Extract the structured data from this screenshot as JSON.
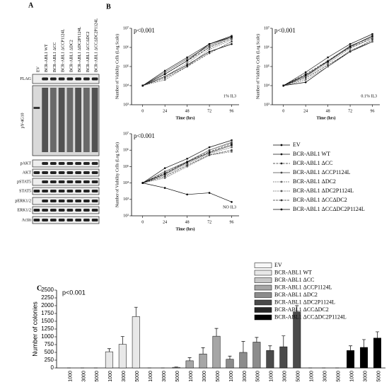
{
  "panel_a": {
    "label": "A",
    "lanes": [
      "EV",
      "BCR-ABL1 WT",
      "BCR-ABL1 ΔCC",
      "BCR-ABL1 ΔCCP1124L",
      "BCR-ABL1 ΔDC2",
      "BCR-ABL1 ΔDC2P1124L",
      "BCR-ABL1 ΔCCΔDC2",
      "BCR-ABL1 ΔCCΔDC2P1124L"
    ],
    "rows": [
      "FLAG",
      "pY-4G10",
      "pAKT",
      "AKT",
      "pSTAT5",
      "STAT5",
      "pERK1/2",
      "ERK1/2",
      "Actin"
    ]
  },
  "panel_b_label": "B",
  "panel_c_label": "C",
  "chart_data": [
    {
      "type": "line",
      "annotation": "p<0.001",
      "condition": "1% IL3",
      "x_label": "Time (hrs)",
      "y_label": "Number of Viability Cells (Log Scale)",
      "x": [
        0,
        24,
        48,
        72,
        96
      ],
      "xlim": [
        -12,
        104
      ],
      "xticks": [
        0,
        24,
        48,
        72,
        96
      ],
      "ylim": [
        1000,
        10000000
      ],
      "log_y": true,
      "yticks": [
        {
          "value": 1000,
          "label": "10³"
        },
        {
          "value": 10000,
          "label": "10⁴"
        },
        {
          "value": 100000,
          "label": "10⁵"
        },
        {
          "value": 1000000,
          "label": "10⁶"
        },
        {
          "value": 10000000,
          "label": "10⁷"
        }
      ],
      "series": [
        {
          "name": "EV",
          "color": "#000000",
          "values": [
            10000,
            30000,
            120000,
            600000,
            1500000
          ]
        },
        {
          "name": "BCR-ABL1 WT",
          "color": "#111111",
          "values": [
            10000,
            60000,
            300000,
            1500000,
            4000000
          ]
        },
        {
          "name": "BCR-ABL1 ΔCC",
          "color": "#222222",
          "values": [
            10000,
            40000,
            200000,
            1000000,
            3000000
          ]
        },
        {
          "name": "BCR-ABL1 ΔCCP1124L",
          "color": "#444444",
          "values": [
            10000,
            50000,
            250000,
            1200000,
            3500000
          ]
        },
        {
          "name": "BCR-ABL1 ΔDC2",
          "color": "#666666",
          "values": [
            10000,
            20000,
            100000,
            800000,
            2500000
          ]
        },
        {
          "name": "BCR-ABL1 ΔDC2P1124L",
          "color": "#555555",
          "values": [
            10000,
            30000,
            150000,
            1000000,
            3000000
          ]
        },
        {
          "name": "BCR-ABL1 ΔCCΔDC2",
          "color": "#333333",
          "values": [
            10000,
            25000,
            100000,
            500000,
            2000000
          ]
        },
        {
          "name": "BCR-ABL1 ΔCCΔDC2P1124L",
          "color": "#000000",
          "values": [
            10000,
            40000,
            200000,
            1500000,
            3500000
          ]
        }
      ]
    },
    {
      "type": "line",
      "annotation": "p<0.001",
      "condition": "0.1% IL3",
      "x_label": "Time (hrs)",
      "y_label": "Number of Viability Cells (Log Scale)",
      "x": [
        0,
        24,
        48,
        72,
        96
      ],
      "xlim": [
        -12,
        104
      ],
      "xticks": [
        0,
        24,
        48,
        72,
        96
      ],
      "ylim": [
        1000,
        10000000
      ],
      "log_y": true,
      "yticks": [
        {
          "value": 1000,
          "label": "10³"
        },
        {
          "value": 10000,
          "label": "10⁴"
        },
        {
          "value": 100000,
          "label": "10⁵"
        },
        {
          "value": 1000000,
          "label": "10⁶"
        },
        {
          "value": 10000000,
          "label": "10⁷"
        }
      ],
      "series": [
        {
          "color": "#000000",
          "values": [
            10000,
            15000,
            100000,
            600000,
            2000000
          ]
        },
        {
          "color": "#111111",
          "values": [
            10000,
            50000,
            300000,
            1500000,
            5000000
          ]
        },
        {
          "color": "#222222",
          "values": [
            10000,
            40000,
            200000,
            1000000,
            3000000
          ]
        },
        {
          "color": "#444444",
          "values": [
            10000,
            30000,
            200000,
            1200000,
            3500000
          ]
        },
        {
          "color": "#666666",
          "values": [
            10000,
            20000,
            100000,
            700000,
            2000000
          ]
        },
        {
          "color": "#555555",
          "values": [
            10000,
            30000,
            150000,
            900000,
            3000000
          ]
        },
        {
          "color": "#333333",
          "values": [
            10000,
            25000,
            120000,
            600000,
            2500000
          ]
        },
        {
          "color": "#000000",
          "values": [
            10000,
            35000,
            180000,
            1100000,
            4000000
          ]
        }
      ]
    },
    {
      "type": "line",
      "annotation": "p<0.001",
      "condition": "NO IL3",
      "x_label": "Time (hrs)",
      "y_label": "Number of Viability Cells (Log Scale)",
      "x": [
        0,
        24,
        48,
        72,
        96
      ],
      "xlim": [
        -12,
        104
      ],
      "xticks": [
        0,
        24,
        48,
        72,
        96
      ],
      "ylim": [
        100,
        10000000
      ],
      "log_y": true,
      "yticks": [
        {
          "value": 100,
          "label": "10²"
        },
        {
          "value": 1000,
          "label": "10³"
        },
        {
          "value": 10000,
          "label": "10⁴"
        },
        {
          "value": 100000,
          "label": "10⁵"
        },
        {
          "value": 1000000,
          "label": "10⁶"
        },
        {
          "value": 10000000,
          "label": "10⁷"
        }
      ],
      "series": [
        {
          "color": "#000000",
          "values": [
            10000,
            5000,
            2000,
            2500,
            700
          ]
        },
        {
          "color": "#111111",
          "values": [
            10000,
            80000,
            300000,
            1500000,
            4000000
          ]
        },
        {
          "color": "#222222",
          "values": [
            10000,
            40000,
            200000,
            800000,
            2500000
          ]
        },
        {
          "color": "#444444",
          "values": [
            10000,
            50000,
            200000,
            1000000,
            3000000
          ]
        },
        {
          "color": "#666666",
          "values": [
            10000,
            20000,
            100000,
            500000,
            800000
          ]
        },
        {
          "color": "#555555",
          "values": [
            10000,
            30000,
            150000,
            600000,
            1500000
          ]
        },
        {
          "color": "#333333",
          "values": [
            10000,
            25000,
            120000,
            500000,
            1000000
          ]
        },
        {
          "color": "#000000",
          "values": [
            10000,
            35000,
            180000,
            700000,
            2000000
          ]
        }
      ]
    },
    {
      "type": "bar",
      "annotation": "p<0.001",
      "y_label": "Number of colonies",
      "categories": [
        "1000",
        "3000",
        "5000"
      ],
      "ylim": [
        0,
        2500
      ],
      "yticks": [
        0,
        250,
        500,
        750,
        1000,
        1250,
        1500,
        1750,
        2000,
        2250,
        2500
      ],
      "series": [
        {
          "name": "EV",
          "color": "#f7f7f7",
          "values": [
            0,
            0,
            0
          ],
          "errors": [
            0,
            0,
            0
          ]
        },
        {
          "name": "BCR-ABL1 WT",
          "color": "#e8e8e8",
          "values": [
            520,
            760,
            1650
          ],
          "errors": [
            100,
            250,
            300
          ]
        },
        {
          "name": "BCR-ABL1 ΔCC",
          "color": "#c8c8c8",
          "values": [
            0,
            0,
            20
          ],
          "errors": [
            0,
            0,
            10
          ]
        },
        {
          "name": "BCR-ABL1 ΔCCP1124L",
          "color": "#a6a6a6",
          "values": [
            230,
            450,
            1020
          ],
          "errors": [
            100,
            200,
            250
          ]
        },
        {
          "name": "BCR-ABL1 ΔDC2",
          "color": "#8c8c8c",
          "values": [
            280,
            500,
            830
          ],
          "errors": [
            100,
            350,
            150
          ]
        },
        {
          "name": "BCR-ABL1 ΔDC2P1124L",
          "color": "#4a4a4a",
          "values": [
            560,
            680,
            1800
          ],
          "errors": [
            150,
            350,
            200
          ]
        },
        {
          "name": "BCR-ABL1 ΔCCΔDC2",
          "color": "#262626",
          "values": [
            0,
            0,
            0
          ],
          "errors": [
            0,
            0,
            0
          ]
        },
        {
          "name": "BCR-ABL1 ΔCCΔDC2P1124L",
          "color": "#000000",
          "values": [
            560,
            660,
            960
          ],
          "errors": [
            150,
            250,
            200
          ]
        }
      ]
    }
  ]
}
